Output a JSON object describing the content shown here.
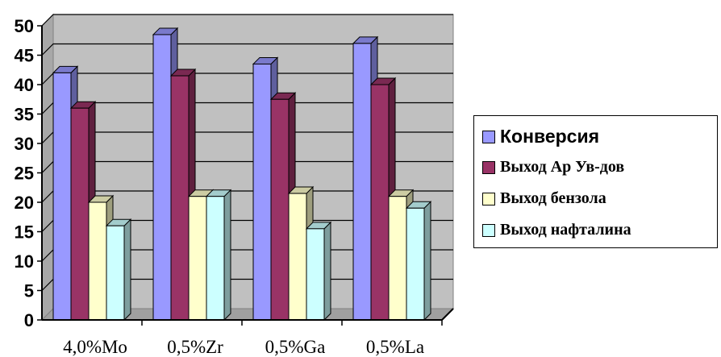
{
  "chart_data": {
    "type": "bar",
    "categories": [
      "4,0%Mo",
      "0,5%Zr",
      "0,5%Ga",
      "0,5%La"
    ],
    "series": [
      {
        "name": "Конверсия",
        "values": [
          42,
          48.5,
          43.5,
          47
        ],
        "color": "#9999FF"
      },
      {
        "name": "Выход Ар Ув-дов",
        "values": [
          36,
          41.5,
          37.5,
          40
        ],
        "color": "#993366"
      },
      {
        "name": "Выход бензола",
        "values": [
          20,
          21,
          21.5,
          21
        ],
        "color": "#FFFFCC"
      },
      {
        "name": "Выход нафталина",
        "values": [
          16,
          21,
          15.5,
          19
        ],
        "color": "#CCFFFF"
      }
    ],
    "ylim": [
      0,
      50
    ],
    "yticks": [
      "0",
      "5",
      "10",
      "15",
      "20",
      "25",
      "30",
      "35",
      "40",
      "45",
      "50"
    ],
    "grid": true,
    "plot_background": "#C0C0C0",
    "legend_position": "right"
  }
}
